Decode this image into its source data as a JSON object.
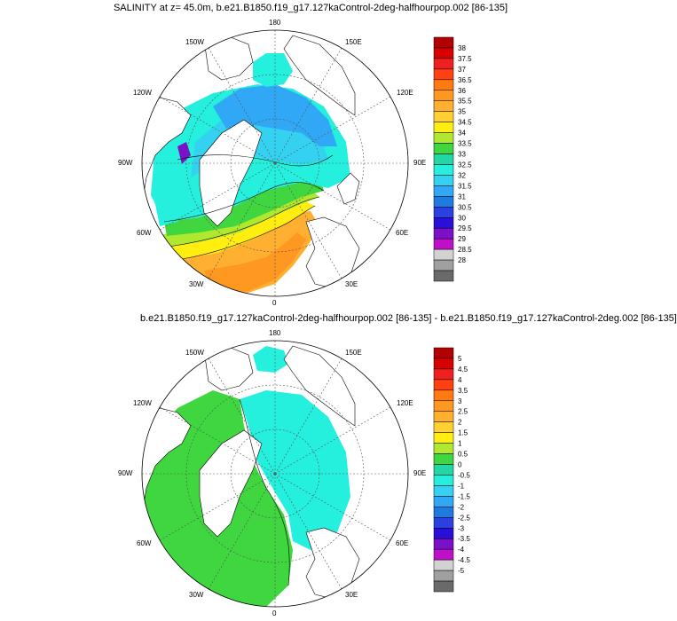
{
  "panels": [
    {
      "title": "SALINITY at z=  45.0m, b.e21.B1850.f19_g17.127kaControl-2deg-halfhourpop.002 [86-135]",
      "lon_labels": {
        "n180": "180",
        "w150": "150W",
        "e150": "150E",
        "w120": "120W",
        "e120": "120E",
        "w90": "90W",
        "e90": "90E",
        "w60": "60W",
        "e60": "60E",
        "w30": "30W",
        "e30": "30E",
        "s0": "0"
      },
      "colorbar": {
        "labels": [
          "38",
          "37.5",
          "37",
          "36.5",
          "36",
          "35.5",
          "35",
          "34.5",
          "34",
          "33.5",
          "33",
          "32.5",
          "32",
          "31.5",
          "31",
          "30.5",
          "30",
          "29.5",
          "29",
          "28.5",
          "28"
        ],
        "colors": [
          "#b30000",
          "#d90000",
          "#f02020",
          "#ff4010",
          "#ff7a10",
          "#ff9820",
          "#ffb030",
          "#ffd030",
          "#ffee10",
          "#b0e830",
          "#3fd63f",
          "#22d7a5",
          "#24f0dd",
          "#34d2f0",
          "#30a8f5",
          "#1f7be0",
          "#2a40e0",
          "#2a0fd8",
          "#7a10c8",
          "#c00fc8",
          "#d2d2d2",
          "#a0a0a0",
          "#6a6a6a"
        ]
      }
    },
    {
      "title": "b.e21.B1850.f19_g17.127kaControl-2deg-halfhourpop.002 [86-135] - b.e21.B1850.f19_g17.127kaControl-2deg.002 [86-135]",
      "lon_labels": {
        "n180": "180",
        "w150": "150W",
        "e150": "150E",
        "w120": "120W",
        "e120": "120E",
        "w90": "90W",
        "e90": "90E",
        "w60": "60W",
        "e60": "60E",
        "w30": "30W",
        "e30": "30E",
        "s0": "0"
      },
      "colorbar": {
        "labels": [
          "5",
          "4.5",
          "4",
          "3.5",
          "3",
          "2.5",
          "2",
          "1.5",
          "1",
          "0.5",
          "0",
          "-0.5",
          "-1",
          "-1.5",
          "-2",
          "-2.5",
          "-3",
          "-3.5",
          "-4",
          "-4.5",
          "-5"
        ],
        "colors": [
          "#b30000",
          "#d90000",
          "#f02020",
          "#ff4010",
          "#ff7a10",
          "#ff9820",
          "#ffb030",
          "#ffd030",
          "#ffee10",
          "#b0e830",
          "#3fd63f",
          "#22d7a5",
          "#24f0dd",
          "#34d2f0",
          "#30a8f5",
          "#1f7be0",
          "#2a40e0",
          "#2a0fd8",
          "#7a10c8",
          "#c00fc8",
          "#d2d2d2",
          "#a0a0a0",
          "#6a6a6a"
        ]
      }
    }
  ]
}
